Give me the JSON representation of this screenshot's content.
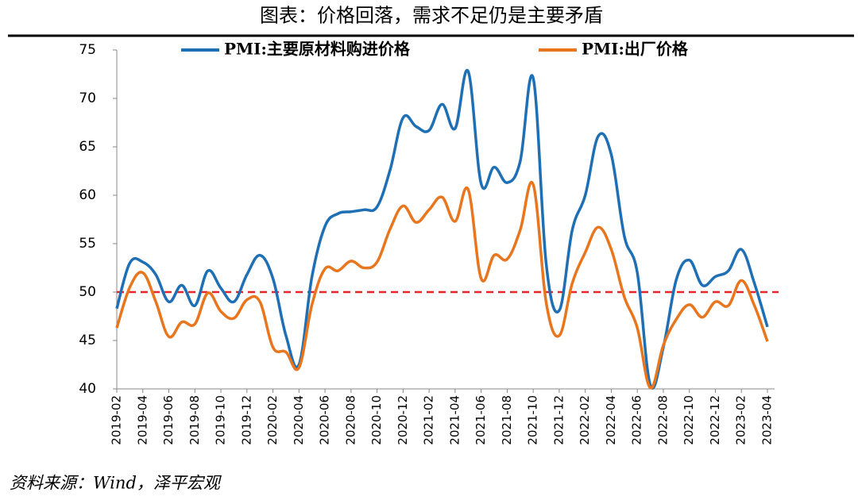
{
  "chart_data": {
    "type": "line",
    "title": "图表：价格回落，需求不足仍是主要矛盾",
    "source": "资料来源：Wind，泽平宏观",
    "categories": [
      "2019-02",
      null,
      "2019-04",
      null,
      "2019-06",
      null,
      "2019-08",
      null,
      "2019-10",
      null,
      "2019-12",
      null,
      "2020-02",
      null,
      "2020-04",
      null,
      "2020-06",
      null,
      "2020-08",
      null,
      "2020-10",
      null,
      "2020-12",
      null,
      "2021-02",
      null,
      "2021-04",
      null,
      "2021-06",
      null,
      "2021-08",
      null,
      "2021-10",
      null,
      "2021-12",
      null,
      "2022-02",
      null,
      "2022-04",
      null,
      "2022-06",
      null,
      "2022-08",
      null,
      "2022-10",
      null,
      "2022-12",
      null,
      "2023-02",
      null,
      "2023-04"
    ],
    "series": [
      {
        "name": "PMI:主要原材料购进价格",
        "color": "#1f6fb5",
        "values": [
          48.3,
          53.0,
          53.1,
          51.8,
          49.0,
          50.7,
          48.6,
          52.2,
          50.4,
          49.0,
          51.8,
          53.8,
          51.4,
          45.5,
          42.5,
          51.6,
          56.8,
          58.1,
          58.3,
          58.5,
          58.8,
          62.6,
          68.0,
          67.1,
          66.7,
          69.4,
          66.9,
          72.8,
          61.2,
          62.9,
          61.3,
          63.5,
          72.1,
          52.9,
          48.1,
          56.4,
          60.0,
          66.1,
          64.2,
          55.8,
          52.0,
          40.4,
          44.3,
          51.3,
          53.3,
          50.7,
          51.6,
          52.2,
          54.4,
          50.9,
          46.4
        ]
      },
      {
        "name": "PMI:出厂价格",
        "color": "#e8761e",
        "values": [
          46.3,
          50.5,
          52.0,
          49.0,
          45.4,
          46.9,
          46.7,
          49.9,
          48.0,
          47.3,
          49.2,
          49.0,
          44.3,
          43.8,
          42.2,
          48.7,
          52.4,
          52.2,
          53.2,
          52.5,
          53.1,
          56.5,
          58.9,
          57.2,
          58.5,
          59.8,
          57.3,
          60.6,
          51.4,
          53.8,
          53.4,
          56.4,
          61.1,
          48.9,
          45.5,
          50.9,
          54.1,
          56.7,
          54.4,
          49.5,
          46.3,
          40.1,
          44.5,
          47.2,
          48.7,
          47.4,
          49.0,
          48.6,
          51.2,
          48.6,
          44.9
        ]
      }
    ],
    "reference_line": {
      "value": 50,
      "color": "#e8262a"
    },
    "ylim": [
      40,
      75
    ],
    "yticks": [
      40,
      45,
      50,
      55,
      60,
      65,
      70,
      75
    ],
    "grid": false,
    "legend": "top"
  }
}
